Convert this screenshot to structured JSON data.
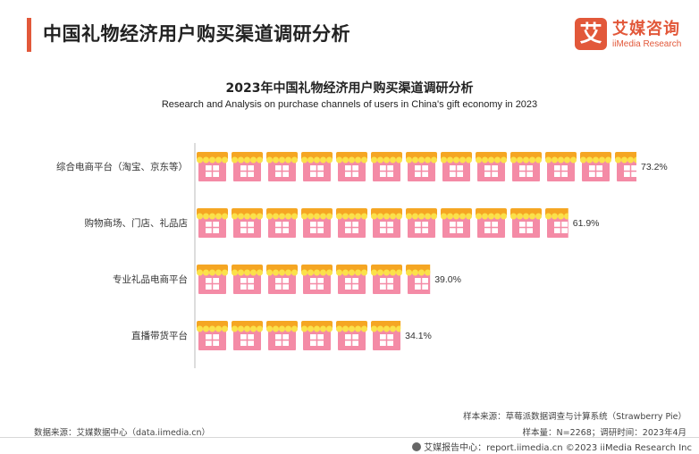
{
  "header": {
    "title": "中国礼物经济用户购买渠道调研分析"
  },
  "logo": {
    "mark": "艾",
    "name_cn": "艾媒咨询",
    "name_en": "iiMedia Research"
  },
  "chart_data": {
    "type": "bar",
    "orientation": "horizontal",
    "title": "2023年中国礼物经济用户购买渠道调研分析",
    "subtitle": "Research and Analysis on purchase channels of users in China's gift economy in 2023",
    "categories": [
      "综合电商平台（淘宝、京东等）",
      "购物商场、门店、礼品店",
      "专业礼品电商平台",
      "直播带货平台"
    ],
    "values": [
      73.2,
      61.9,
      39.0,
      34.1
    ],
    "value_labels": [
      "73.2%",
      "61.9%",
      "39.0%",
      "34.1%"
    ],
    "unit": "%",
    "xlim": [
      0,
      73.2
    ],
    "grid": false,
    "legend": "none",
    "mark_style": "pictogram-shop",
    "colors": {
      "awning": "#f5a623",
      "awning_trim": "#fbe14a",
      "body": "#f48ba6",
      "window": "#ffffff",
      "axis": "#bbbbbb"
    }
  },
  "notes": {
    "source": "数据来源：艾媒数据中心（data.iimedia.cn）",
    "sample_source": "样本来源：草莓派数据调查与计算系统（Strawberry Pie）",
    "sample_size": "样本量：N=2268；调研时间：2023年4月"
  },
  "footer": {
    "text": "艾媒报告中心：report.iimedia.cn  ©2023  iiMedia Research  Inc"
  }
}
